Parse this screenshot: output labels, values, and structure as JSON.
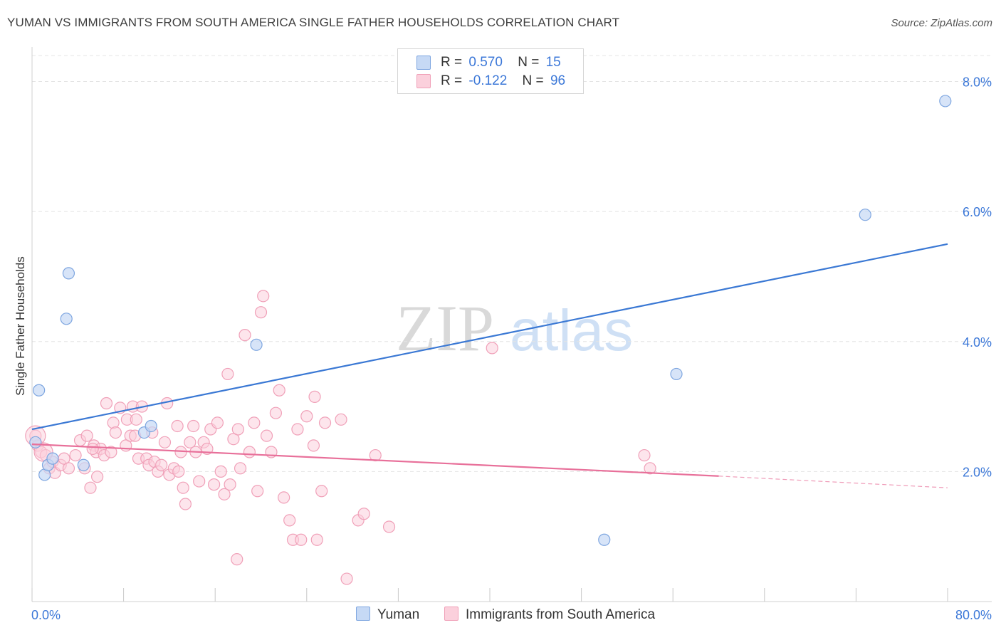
{
  "title": "YUMAN VS IMMIGRANTS FROM SOUTH AMERICA SINGLE FATHER HOUSEHOLDS CORRELATION CHART",
  "source": "Source: ZipAtlas.com",
  "watermark": {
    "zip": "ZIP",
    "atlas": "atlas"
  },
  "legend": {
    "r_label": "R =",
    "n_label": "N =",
    "rows": [
      {
        "r": "0.570",
        "n": "15"
      },
      {
        "r": "-0.122",
        "n": "96"
      }
    ]
  },
  "colors": {
    "yuman_fill": "#c6d9f5",
    "yuman_stroke": "#7ea6e0",
    "yuman_line": "#3a78d4",
    "imm_fill": "#fbd0dc",
    "imm_stroke": "#f0a0b8",
    "imm_line": "#e8709a",
    "grid": "#e4e4e4",
    "tick_text": "#3c78d8"
  },
  "chart_data": {
    "type": "scatter",
    "title": "YUMAN VS IMMIGRANTS FROM SOUTH AMERICA SINGLE FATHER HOUSEHOLDS CORRELATION CHART",
    "xlabel": "",
    "ylabel": "Single Father Households",
    "xlim": [
      0,
      80
    ],
    "ylim": [
      0,
      8.4
    ],
    "x_tick_labels": [
      "0.0%",
      "80.0%"
    ],
    "y_ticks": [
      2,
      4,
      6,
      8
    ],
    "y_tick_labels": [
      "2.0%",
      "4.0%",
      "6.0%",
      "8.0%"
    ],
    "grid": true,
    "legend_position": "top-center",
    "series": [
      {
        "name": "Yuman",
        "r": 0.57,
        "n": 15,
        "points": [
          [
            0.3,
            2.45
          ],
          [
            0.6,
            3.25
          ],
          [
            1.1,
            1.95
          ],
          [
            1.4,
            2.1
          ],
          [
            1.8,
            2.2
          ],
          [
            3.2,
            5.05
          ],
          [
            3.0,
            4.35
          ],
          [
            4.5,
            2.1
          ],
          [
            9.8,
            2.6
          ],
          [
            10.4,
            2.7
          ],
          [
            19.6,
            3.95
          ],
          [
            56.3,
            3.5
          ],
          [
            50.0,
            0.95
          ],
          [
            72.8,
            5.95
          ],
          [
            79.8,
            7.7
          ]
        ],
        "trend": {
          "x0": 0,
          "y0": 2.65,
          "x1": 80,
          "y1": 5.5
        }
      },
      {
        "name": "Immigrants from South America",
        "r": -0.122,
        "n": 96,
        "points": [
          [
            0.3,
            2.55
          ],
          [
            0.5,
            2.4
          ],
          [
            0.8,
            2.3
          ],
          [
            1.2,
            2.25
          ],
          [
            1.5,
            2.05
          ],
          [
            1.8,
            2.15
          ],
          [
            2.0,
            1.98
          ],
          [
            2.5,
            2.1
          ],
          [
            2.8,
            2.2
          ],
          [
            3.2,
            2.05
          ],
          [
            3.8,
            2.25
          ],
          [
            4.2,
            2.48
          ],
          [
            4.6,
            2.05
          ],
          [
            4.8,
            2.55
          ],
          [
            5.1,
            1.75
          ],
          [
            5.4,
            2.4
          ],
          [
            5.6,
            2.3
          ],
          [
            5.7,
            1.92
          ],
          [
            6.0,
            2.35
          ],
          [
            6.3,
            2.25
          ],
          [
            6.5,
            3.05
          ],
          [
            6.9,
            2.3
          ],
          [
            7.1,
            2.75
          ],
          [
            7.3,
            2.6
          ],
          [
            7.7,
            2.98
          ],
          [
            8.2,
            2.4
          ],
          [
            8.3,
            2.8
          ],
          [
            8.6,
            2.55
          ],
          [
            8.8,
            3.0
          ],
          [
            9.1,
            2.8
          ],
          [
            9.3,
            2.2
          ],
          [
            9.6,
            3.0
          ],
          [
            10.0,
            2.2
          ],
          [
            10.2,
            2.1
          ],
          [
            10.5,
            2.6
          ],
          [
            10.7,
            2.15
          ],
          [
            11.0,
            2.0
          ],
          [
            11.3,
            2.1
          ],
          [
            11.6,
            2.45
          ],
          [
            11.8,
            3.05
          ],
          [
            12.0,
            1.95
          ],
          [
            12.4,
            2.05
          ],
          [
            12.7,
            2.7
          ],
          [
            13.0,
            2.3
          ],
          [
            13.2,
            1.75
          ],
          [
            13.4,
            1.5
          ],
          [
            13.8,
            2.45
          ],
          [
            14.1,
            2.7
          ],
          [
            14.3,
            2.3
          ],
          [
            14.6,
            1.85
          ],
          [
            15.0,
            2.45
          ],
          [
            15.3,
            2.35
          ],
          [
            15.6,
            2.65
          ],
          [
            15.9,
            1.8
          ],
          [
            16.2,
            2.75
          ],
          [
            16.5,
            2.0
          ],
          [
            16.8,
            1.65
          ],
          [
            17.1,
            3.5
          ],
          [
            17.3,
            1.8
          ],
          [
            17.6,
            2.5
          ],
          [
            18.0,
            2.65
          ],
          [
            18.2,
            2.05
          ],
          [
            18.6,
            4.1
          ],
          [
            19.0,
            2.3
          ],
          [
            19.4,
            2.75
          ],
          [
            19.7,
            1.7
          ],
          [
            20.2,
            4.7
          ],
          [
            20.5,
            2.55
          ],
          [
            20.9,
            2.3
          ],
          [
            21.3,
            2.9
          ],
          [
            21.6,
            3.25
          ],
          [
            22.0,
            1.6
          ],
          [
            22.5,
            1.25
          ],
          [
            22.8,
            0.95
          ],
          [
            23.2,
            2.65
          ],
          [
            23.5,
            0.95
          ],
          [
            24.0,
            2.85
          ],
          [
            24.6,
            2.4
          ],
          [
            24.9,
            0.95
          ],
          [
            25.3,
            1.7
          ],
          [
            25.6,
            2.75
          ],
          [
            27.0,
            2.8
          ],
          [
            27.5,
            0.35
          ],
          [
            28.5,
            1.25
          ],
          [
            29.0,
            1.35
          ],
          [
            30.0,
            2.25
          ],
          [
            31.2,
            1.15
          ],
          [
            40.2,
            3.9
          ],
          [
            53.5,
            2.25
          ],
          [
            54.0,
            2.05
          ],
          [
            17.9,
            0.65
          ],
          [
            20.0,
            4.45
          ],
          [
            24.7,
            3.15
          ],
          [
            12.8,
            2.0
          ],
          [
            9.0,
            2.55
          ],
          [
            5.3,
            2.35
          ]
        ],
        "trend": {
          "x0": 0,
          "y0": 2.42,
          "x1": 60,
          "y1": 1.93
        },
        "trend_dashed": {
          "x0": 60,
          "y0": 1.93,
          "x1": 80,
          "y1": 1.75
        }
      }
    ]
  },
  "bottom_legend": [
    "Yuman",
    "Immigrants from South America"
  ]
}
